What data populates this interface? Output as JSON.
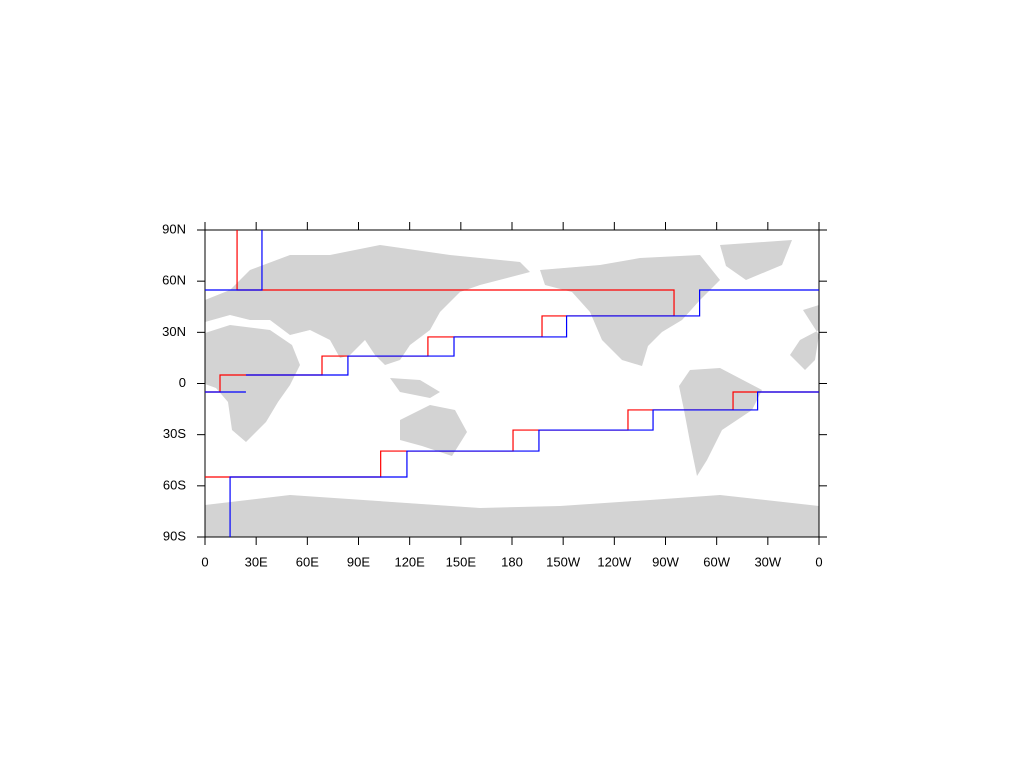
{
  "map": {
    "xlim": [
      0,
      360
    ],
    "ylim": [
      -90,
      90
    ],
    "xticks": [
      0,
      {
        "value": 30,
        "label": "30E"
      },
      {
        "value": 60,
        "label": "60E"
      },
      {
        "value": 90,
        "label": "90E"
      },
      {
        "value": 120,
        "label": "120E"
      },
      {
        "value": 150,
        "label": "150E"
      },
      {
        "value": 180,
        "label": "180"
      },
      {
        "value": 210,
        "label": "150W"
      },
      {
        "value": 240,
        "label": "120W"
      },
      {
        "value": 270,
        "label": "90W"
      },
      {
        "value": 300,
        "label": "60W"
      },
      {
        "value": 330,
        "label": "30W"
      },
      {
        "value": 360,
        "label": "0"
      }
    ],
    "yticks": [
      {
        "value": -90,
        "label": "90S"
      },
      {
        "value": -60,
        "label": "60S"
      },
      {
        "value": -30,
        "label": "30S"
      },
      0,
      {
        "value": 30,
        "label": "30N"
      },
      {
        "value": 60,
        "label": "60N"
      },
      {
        "value": 90,
        "label": "90N"
      }
    ],
    "series": [
      {
        "color": "#ff0000",
        "lon": [
          18.8,
          18.8,
          275,
          275,
          197.6,
          197.6,
          130.7,
          130.7,
          68.6,
          68.6,
          8.8,
          8.8,
          0
        ],
        "lat": [
          90,
          54.8,
          54.8,
          39.6,
          39.6,
          27.3,
          27.3,
          16.1,
          16.1,
          5,
          5,
          -5,
          -5
        ]
      },
      {
        "color": "#0000ff",
        "lon": [
          33.4,
          33.4,
          0
        ],
        "lat": [
          90,
          54.8,
          54.8
        ]
      },
      {
        "color": "#0000ff",
        "lon": [
          360,
          290,
          290,
          212,
          212,
          146,
          146,
          83.8,
          83.8,
          24
        ],
        "lat": [
          54.8,
          54.8,
          39.6,
          39.6,
          27.3,
          27.3,
          16.1,
          16.1,
          5,
          5
        ]
      },
      {
        "color": "#0000ff",
        "lon": [
          0,
          24
        ],
        "lat": [
          -5,
          -5
        ]
      },
      {
        "color": "#ff0000",
        "lon": [
          0,
          103,
          103,
          180.6,
          180.6,
          248,
          248,
          309.6,
          309.6,
          360
        ],
        "lat": [
          -54.8,
          -54.8,
          -39.6,
          -39.6,
          -27.3,
          -27.3,
          -15.5,
          -15.5,
          -5,
          -5
        ]
      },
      {
        "color": "#0000ff",
        "lon": [
          14.7,
          14.7,
          118.4,
          118.4,
          195.8,
          195.8,
          262.7,
          262.7,
          324,
          324,
          360
        ],
        "lat": [
          -90,
          -54.8,
          -54.8,
          -39.6,
          -39.6,
          -27.3,
          -27.3,
          -15.5,
          -15.5,
          -5,
          -5
        ]
      }
    ]
  }
}
